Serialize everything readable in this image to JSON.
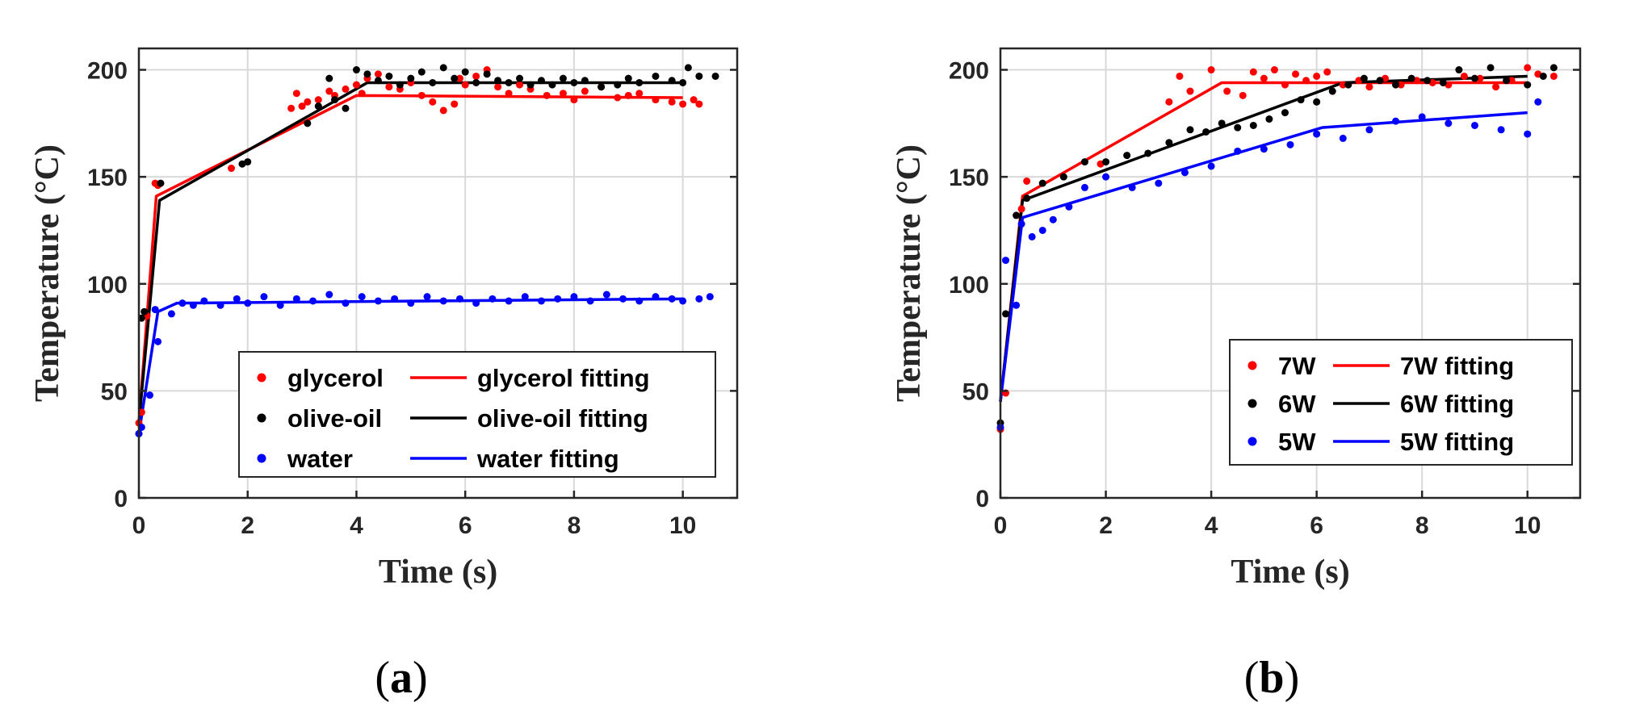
{
  "panels": [
    {
      "label": {
        "open": "(",
        "letter": "a",
        "close": ")"
      }
    },
    {
      "label": {
        "open": "(",
        "letter": "b",
        "close": ")"
      }
    }
  ],
  "chart_data": [
    {
      "type": "scatter",
      "title": "",
      "xlabel": "Time (s)",
      "ylabel": "Temperature (°C)",
      "xlim": [
        0,
        11
      ],
      "ylim": [
        0,
        210
      ],
      "xticks": [
        "0",
        "2",
        "4",
        "6",
        "8",
        "10"
      ],
      "xtick_values": [
        0,
        2,
        4,
        6,
        8,
        10
      ],
      "yticks": [
        "0",
        "50",
        "100",
        "150",
        "200"
      ],
      "ytick_values": [
        0,
        50,
        100,
        150,
        200
      ],
      "grid": true,
      "legend_position": "bottom-right",
      "legend_columns": 2,
      "series": [
        {
          "name": "glycerol",
          "kind": "points",
          "color": "#ff0000",
          "x": [
            0,
            0.05,
            0.15,
            0.3,
            0.35,
            1.7,
            2.8,
            2.9,
            3.0,
            3.1,
            3.3,
            3.5,
            3.6,
            3.8,
            4.0,
            4.1,
            4.2,
            4.4,
            4.6,
            4.8,
            5.0,
            5.2,
            5.4,
            5.6,
            5.8,
            5.9,
            6.0,
            6.2,
            6.4,
            6.6,
            6.8,
            7.0,
            7.2,
            7.5,
            7.8,
            8.0,
            8.2,
            8.5,
            8.8,
            9.0,
            9.2,
            9.5,
            9.8,
            10.0,
            10.2,
            10.3
          ],
          "y": [
            35,
            40,
            85,
            147,
            146,
            154,
            182,
            189,
            183,
            185,
            186,
            190,
            188,
            191,
            193,
            189,
            196,
            198,
            192,
            191,
            194,
            188,
            185,
            181,
            184,
            196,
            193,
            197,
            200,
            192,
            189,
            193,
            191,
            188,
            189,
            186,
            190,
            192,
            187,
            188,
            189,
            186,
            185,
            184,
            186,
            184
          ]
        },
        {
          "name": "olive-oil",
          "kind": "points",
          "color": "#000000",
          "x": [
            0,
            0.05,
            0.1,
            0.4,
            1.9,
            2.0,
            3.1,
            3.3,
            3.5,
            3.6,
            3.8,
            4.0,
            4.2,
            4.4,
            4.6,
            4.8,
            5.0,
            5.2,
            5.4,
            5.6,
            5.8,
            6.0,
            6.2,
            6.4,
            6.6,
            6.8,
            7.0,
            7.2,
            7.4,
            7.6,
            7.8,
            8.0,
            8.2,
            8.5,
            8.8,
            9.0,
            9.2,
            9.5,
            9.8,
            10.0,
            10.1,
            10.3,
            10.6
          ],
          "y": [
            30,
            84,
            87,
            147,
            156,
            157,
            175,
            183,
            196,
            186,
            182,
            200,
            198,
            195,
            197,
            193,
            196,
            199,
            194,
            201,
            196,
            199,
            194,
            198,
            195,
            194,
            196,
            193,
            195,
            193,
            196,
            194,
            195,
            192,
            193,
            196,
            194,
            197,
            195,
            194,
            201,
            197,
            197
          ]
        },
        {
          "name": "water",
          "kind": "points",
          "color": "#0000ff",
          "x": [
            0,
            0.05,
            0.2,
            0.3,
            0.35,
            0.6,
            0.8,
            1.0,
            1.2,
            1.5,
            1.8,
            2.0,
            2.3,
            2.6,
            2.9,
            3.2,
            3.5,
            3.8,
            4.1,
            4.4,
            4.7,
            5.0,
            5.3,
            5.6,
            5.9,
            6.2,
            6.5,
            6.8,
            7.1,
            7.4,
            7.7,
            8.0,
            8.3,
            8.6,
            8.9,
            9.2,
            9.5,
            9.8,
            10.0,
            10.3,
            10.5
          ],
          "y": [
            30,
            33,
            48,
            88,
            73,
            86,
            91,
            90,
            92,
            90,
            93,
            91,
            94,
            90,
            93,
            92,
            95,
            91,
            94,
            92,
            93,
            91,
            94,
            92,
            93,
            91,
            93,
            92,
            94,
            92,
            93,
            94,
            92,
            95,
            93,
            92,
            94,
            93,
            92,
            93,
            94
          ]
        },
        {
          "name": "glycerol fitting",
          "kind": "line",
          "color": "#ff0000",
          "x": [
            0,
            0.32,
            4.0,
            10.0
          ],
          "y": [
            35,
            141,
            188,
            187
          ]
        },
        {
          "name": "olive-oil fitting",
          "kind": "line",
          "color": "#000000",
          "x": [
            0,
            0.38,
            4.2,
            10.0
          ],
          "y": [
            35,
            139,
            194,
            194
          ]
        },
        {
          "name": "water fitting",
          "kind": "line",
          "color": "#0000ff",
          "x": [
            0,
            0.35,
            0.7,
            10.0
          ],
          "y": [
            30,
            87,
            91,
            93
          ]
        }
      ]
    },
    {
      "type": "scatter",
      "title": "",
      "xlabel": "Time (s)",
      "ylabel": "Temperature (°C)",
      "xlim": [
        0,
        11
      ],
      "ylim": [
        0,
        210
      ],
      "xticks": [
        "0",
        "2",
        "4",
        "6",
        "8",
        "10"
      ],
      "xtick_values": [
        0,
        2,
        4,
        6,
        8,
        10
      ],
      "yticks": [
        "0",
        "50",
        "100",
        "150",
        "200"
      ],
      "ytick_values": [
        0,
        50,
        100,
        150,
        200
      ],
      "grid": true,
      "legend_position": "bottom-right",
      "legend_columns": 2,
      "series": [
        {
          "name": "7W",
          "kind": "points",
          "color": "#ff0000",
          "x": [
            0,
            0.1,
            0.4,
            0.5,
            1.9,
            3.2,
            3.4,
            3.6,
            4.0,
            4.3,
            4.6,
            4.8,
            5.0,
            5.2,
            5.4,
            5.6,
            5.8,
            6.0,
            6.2,
            6.5,
            6.8,
            7.0,
            7.3,
            7.6,
            7.9,
            8.2,
            8.5,
            8.8,
            9.1,
            9.4,
            9.7,
            10.0,
            10.2,
            10.5
          ],
          "y": [
            32,
            49,
            135,
            148,
            156,
            185,
            197,
            190,
            200,
            190,
            188,
            199,
            196,
            200,
            193,
            198,
            195,
            197,
            199,
            193,
            195,
            192,
            196,
            193,
            195,
            194,
            193,
            197,
            196,
            192,
            195,
            201,
            198,
            197
          ]
        },
        {
          "name": "6W",
          "kind": "points",
          "color": "#000000",
          "x": [
            0,
            0.1,
            0.3,
            0.5,
            0.8,
            1.2,
            1.6,
            2.0,
            2.4,
            2.8,
            3.2,
            3.6,
            3.9,
            4.2,
            4.5,
            4.8,
            5.1,
            5.4,
            5.7,
            6.0,
            6.3,
            6.6,
            6.9,
            7.2,
            7.5,
            7.8,
            8.1,
            8.4,
            8.7,
            9.0,
            9.3,
            9.6,
            10.0,
            10.3,
            10.5
          ],
          "y": [
            35,
            86,
            132,
            140,
            147,
            150,
            157,
            157,
            160,
            161,
            166,
            172,
            171,
            175,
            173,
            174,
            177,
            180,
            186,
            185,
            190,
            193,
            196,
            195,
            193,
            196,
            195,
            194,
            200,
            196,
            201,
            195,
            193,
            197,
            201
          ]
        },
        {
          "name": "5W",
          "kind": "points",
          "color": "#0000ff",
          "x": [
            0,
            0.1,
            0.3,
            0.4,
            0.6,
            0.8,
            1.0,
            1.3,
            1.6,
            2.0,
            2.5,
            3.0,
            3.5,
            4.0,
            4.5,
            5.0,
            5.5,
            6.0,
            6.5,
            7.0,
            7.5,
            8.0,
            8.5,
            9.0,
            9.5,
            10.0,
            10.2
          ],
          "y": [
            33,
            111,
            90,
            128,
            122,
            125,
            130,
            136,
            145,
            150,
            145,
            147,
            152,
            155,
            162,
            163,
            165,
            170,
            168,
            172,
            176,
            178,
            175,
            174,
            172,
            170,
            185
          ]
        },
        {
          "name": "7W fitting",
          "kind": "line",
          "color": "#ff0000",
          "x": [
            0,
            0.42,
            4.2,
            10.0
          ],
          "y": [
            45,
            141,
            194,
            194
          ]
        },
        {
          "name": "6W fitting",
          "kind": "line",
          "color": "#000000",
          "x": [
            0,
            0.42,
            6.5,
            10.0
          ],
          "y": [
            45,
            139,
            194,
            197
          ]
        },
        {
          "name": "5W fitting",
          "kind": "line",
          "color": "#0000ff",
          "x": [
            0,
            0.42,
            6.1,
            10.0
          ],
          "y": [
            45,
            131,
            173,
            180
          ]
        }
      ]
    }
  ]
}
